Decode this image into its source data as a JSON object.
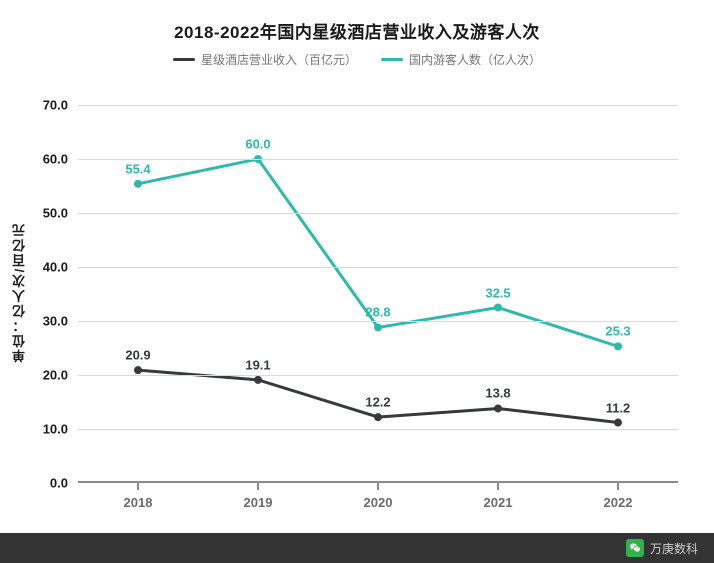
{
  "chart": {
    "type": "line",
    "title": "2018-2022年国内星级酒店营业收入及游客人次",
    "title_fontsize": 17,
    "y_axis_title": "单位：亿人次/百亿元",
    "categories": [
      "2018",
      "2019",
      "2020",
      "2021",
      "2022"
    ],
    "ylim": [
      0,
      75
    ],
    "yticks": [
      0.0,
      10.0,
      20.0,
      30.0,
      40.0,
      50.0,
      60.0,
      70.0
    ],
    "ytick_labels": [
      "0.0",
      "10.0",
      "20.0",
      "30.0",
      "40.0",
      "50.0",
      "60.0",
      "70.0"
    ],
    "grid_color": "#d8d8d8",
    "axis_color": "#8a8a8a",
    "background_color": "#ffffff",
    "label_fontsize": 13,
    "series": [
      {
        "name": "星级酒店营业收入（百亿元）",
        "color": "#363a3e",
        "line_width": 3,
        "values": [
          20.9,
          19.1,
          12.2,
          13.8,
          11.2
        ],
        "labels": [
          "20.9",
          "19.1",
          "12.2",
          "13.8",
          "11.2"
        ],
        "marker": "circle",
        "marker_size": 4
      },
      {
        "name": "国内游客人数（亿人次）",
        "color": "#2fb9ad",
        "line_width": 3,
        "values": [
          55.4,
          60.0,
          28.8,
          32.5,
          25.3
        ],
        "labels": [
          "55.4",
          "60.0",
          "28.8",
          "32.5",
          "25.3"
        ],
        "marker": "circle",
        "marker_size": 4
      }
    ]
  },
  "footer": {
    "brand": "万庚数科",
    "bar_color": "#333333",
    "icon_bg": "#2fb24b"
  }
}
